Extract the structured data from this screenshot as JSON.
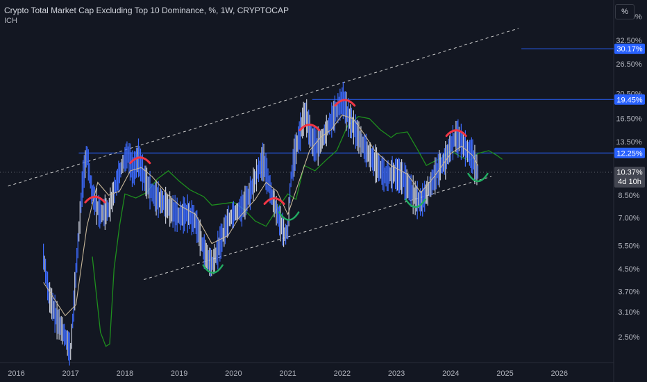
{
  "header": {
    "title": "Crypto Total Market Cap Excluding Top 10 Dominance, %, 1W, CRYPTOCAP",
    "indicator": "ICH",
    "scale_button": "%"
  },
  "colors": {
    "background": "#131722",
    "price": "#3d6bff",
    "price_wick": "#c8ccd8",
    "moving_average": "#c9b89a",
    "cloud_line": "#1e8f1e",
    "trend_lines": "#cfcfcf",
    "level_lines": "#2962ff",
    "tops": "#f23645",
    "bottoms": "#22ab62"
  },
  "chart_data": {
    "type": "line",
    "title": "Crypto Total Market Cap Excluding Top 10 Dominance, %, 1W, CRYPTOCAP",
    "y_scale": "log",
    "ylim": [
      2.0,
      46.0
    ],
    "xlim": [
      2015.7,
      2027.0
    ],
    "x_ticks": [
      "2016",
      "2017",
      "2018",
      "2019",
      "2020",
      "2021",
      "2022",
      "2023",
      "2024",
      "2025",
      "2026"
    ],
    "y_ticks": [
      "40.00%",
      "32.50%",
      "26.50%",
      "20.50%",
      "16.50%",
      "13.50%",
      "8.50%",
      "7.00%",
      "5.50%",
      "4.50%",
      "3.70%",
      "3.10%",
      "2.50%"
    ],
    "price_labels": [
      {
        "text": "30.17%",
        "value": 30.17
      },
      {
        "text": "19.45%",
        "value": 19.45
      },
      {
        "text": "12.25%",
        "value": 12.25
      },
      {
        "text": "10.37%",
        "value": 10.37,
        "sub": "4d 10h"
      }
    ],
    "series": [
      {
        "x": [
          2016.5,
          2016.6,
          2016.75,
          2016.9,
          2017.0,
          2017.12,
          2017.22,
          2017.3,
          2017.38,
          2017.45,
          2017.55,
          2017.7,
          2017.85,
          2017.95,
          2018.05,
          2018.15,
          2018.25,
          2018.35,
          2018.45,
          2018.55,
          2018.7,
          2018.85,
          2019.0,
          2019.15,
          2019.3,
          2019.45,
          2019.55,
          2019.62,
          2019.75,
          2019.9,
          2020.0,
          2020.15,
          2020.3,
          2020.45,
          2020.55,
          2020.7,
          2020.85,
          2020.95,
          2021.0,
          2021.05,
          2021.12,
          2021.22,
          2021.32,
          2021.45,
          2021.55,
          2021.65,
          2021.75,
          2021.85,
          2021.95,
          2022.02,
          2022.1,
          2022.2,
          2022.35,
          2022.5,
          2022.65,
          2022.8,
          2022.95,
          2023.1,
          2023.25,
          2023.35,
          2023.45,
          2023.6,
          2023.75,
          2023.9,
          2024.0,
          2024.1,
          2024.2,
          2024.3,
          2024.4,
          2024.45,
          2024.5
        ],
        "values": [
          5.0,
          3.6,
          2.9,
          2.5,
          2.2,
          5.0,
          9.5,
          12.3,
          9.0,
          8.0,
          7.2,
          7.5,
          9.5,
          11.0,
          12.2,
          10.5,
          11.8,
          10.0,
          9.0,
          8.4,
          8.0,
          7.5,
          7.1,
          7.3,
          6.8,
          5.3,
          4.8,
          4.7,
          5.6,
          6.8,
          7.2,
          7.6,
          8.6,
          10.5,
          11.5,
          8.5,
          6.8,
          6.0,
          6.3,
          9.5,
          12.0,
          14.5,
          17.5,
          13.5,
          13.0,
          14.0,
          15.5,
          17.0,
          18.5,
          19.4,
          17.0,
          15.5,
          13.5,
          12.0,
          11.0,
          10.0,
          10.3,
          10.0,
          9.0,
          8.3,
          8.0,
          9.0,
          10.5,
          11.5,
          13.0,
          14.2,
          13.5,
          12.5,
          12.0,
          11.0,
          10.37
        ]
      },
      {
        "x": [
          2016.5,
          2016.9,
          2017.1,
          2017.3,
          2017.5,
          2017.7,
          2017.9,
          2018.1,
          2018.3,
          2018.5,
          2018.8,
          2019.0,
          2019.3,
          2019.6,
          2019.9,
          2020.1,
          2020.4,
          2020.6,
          2020.8,
          2021.0,
          2021.2,
          2021.4,
          2021.6,
          2021.8,
          2022.0,
          2022.2,
          2022.4,
          2022.6,
          2022.9,
          2023.2,
          2023.45,
          2023.7,
          2024.0,
          2024.2,
          2024.4,
          2024.5
        ],
        "values": [
          4.0,
          3.0,
          3.3,
          6.5,
          9.5,
          8.5,
          8.8,
          10.5,
          10.8,
          10.0,
          8.5,
          7.8,
          7.2,
          5.6,
          6.0,
          7.0,
          8.2,
          9.5,
          8.8,
          7.2,
          9.5,
          12.5,
          14.0,
          15.0,
          17.0,
          16.5,
          14.5,
          12.5,
          11.0,
          10.2,
          8.7,
          10.0,
          12.2,
          13.0,
          12.0,
          11.0
        ]
      },
      {
        "x": [
          2017.4,
          2017.55,
          2017.65,
          2017.72,
          2017.8,
          2017.9,
          2018.0,
          2018.2,
          2018.4,
          2018.6,
          2018.8,
          2019.0,
          2019.2,
          2019.45,
          2019.6,
          2019.8,
          2020.0,
          2020.2,
          2020.4,
          2020.6,
          2020.85,
          2021.0,
          2021.15,
          2021.3,
          2021.5,
          2021.7,
          2021.9,
          2022.1,
          2022.3,
          2022.5,
          2022.7,
          2022.9,
          2023.0,
          2023.2,
          2023.4,
          2023.55,
          2023.7,
          2023.85,
          2024.0,
          2024.2,
          2024.35,
          2024.5,
          2024.7,
          2024.85,
          2024.95
        ],
        "values": [
          5.0,
          2.6,
          2.3,
          2.35,
          4.5,
          6.5,
          8.6,
          8.3,
          8.7,
          9.8,
          10.5,
          9.6,
          8.9,
          8.4,
          7.8,
          7.9,
          8.0,
          7.5,
          6.8,
          6.5,
          7.8,
          8.6,
          8.2,
          11.0,
          10.5,
          11.5,
          12.5,
          15.5,
          16.8,
          16.5,
          15.0,
          14.0,
          14.5,
          14.7,
          12.5,
          11.0,
          11.4,
          11.8,
          12.5,
          11.8,
          11.5,
          12.2,
          12.5,
          12.0,
          11.6
        ]
      }
    ],
    "annotations": {
      "tops": [
        2017.45,
        2018.28,
        2020.75,
        2021.4,
        2022.05,
        2024.1
      ],
      "bottoms": [
        2019.62,
        2021.02,
        2023.35,
        2024.5
      ],
      "upper_trend": {
        "x": [
          2015.85,
          2025.25
        ],
        "y": [
          9.2,
          36.0
        ]
      },
      "lower_trend": {
        "x": [
          2018.35,
          2024.75
        ],
        "y": [
          4.1,
          10.0
        ]
      },
      "level_12_25": {
        "x_start": 2017.15,
        "value": 12.25
      },
      "level_19_45": {
        "x_start": 2021.45,
        "value": 19.45
      },
      "level_30_17": {
        "x_start": 2025.3,
        "value": 30.17
      }
    }
  }
}
